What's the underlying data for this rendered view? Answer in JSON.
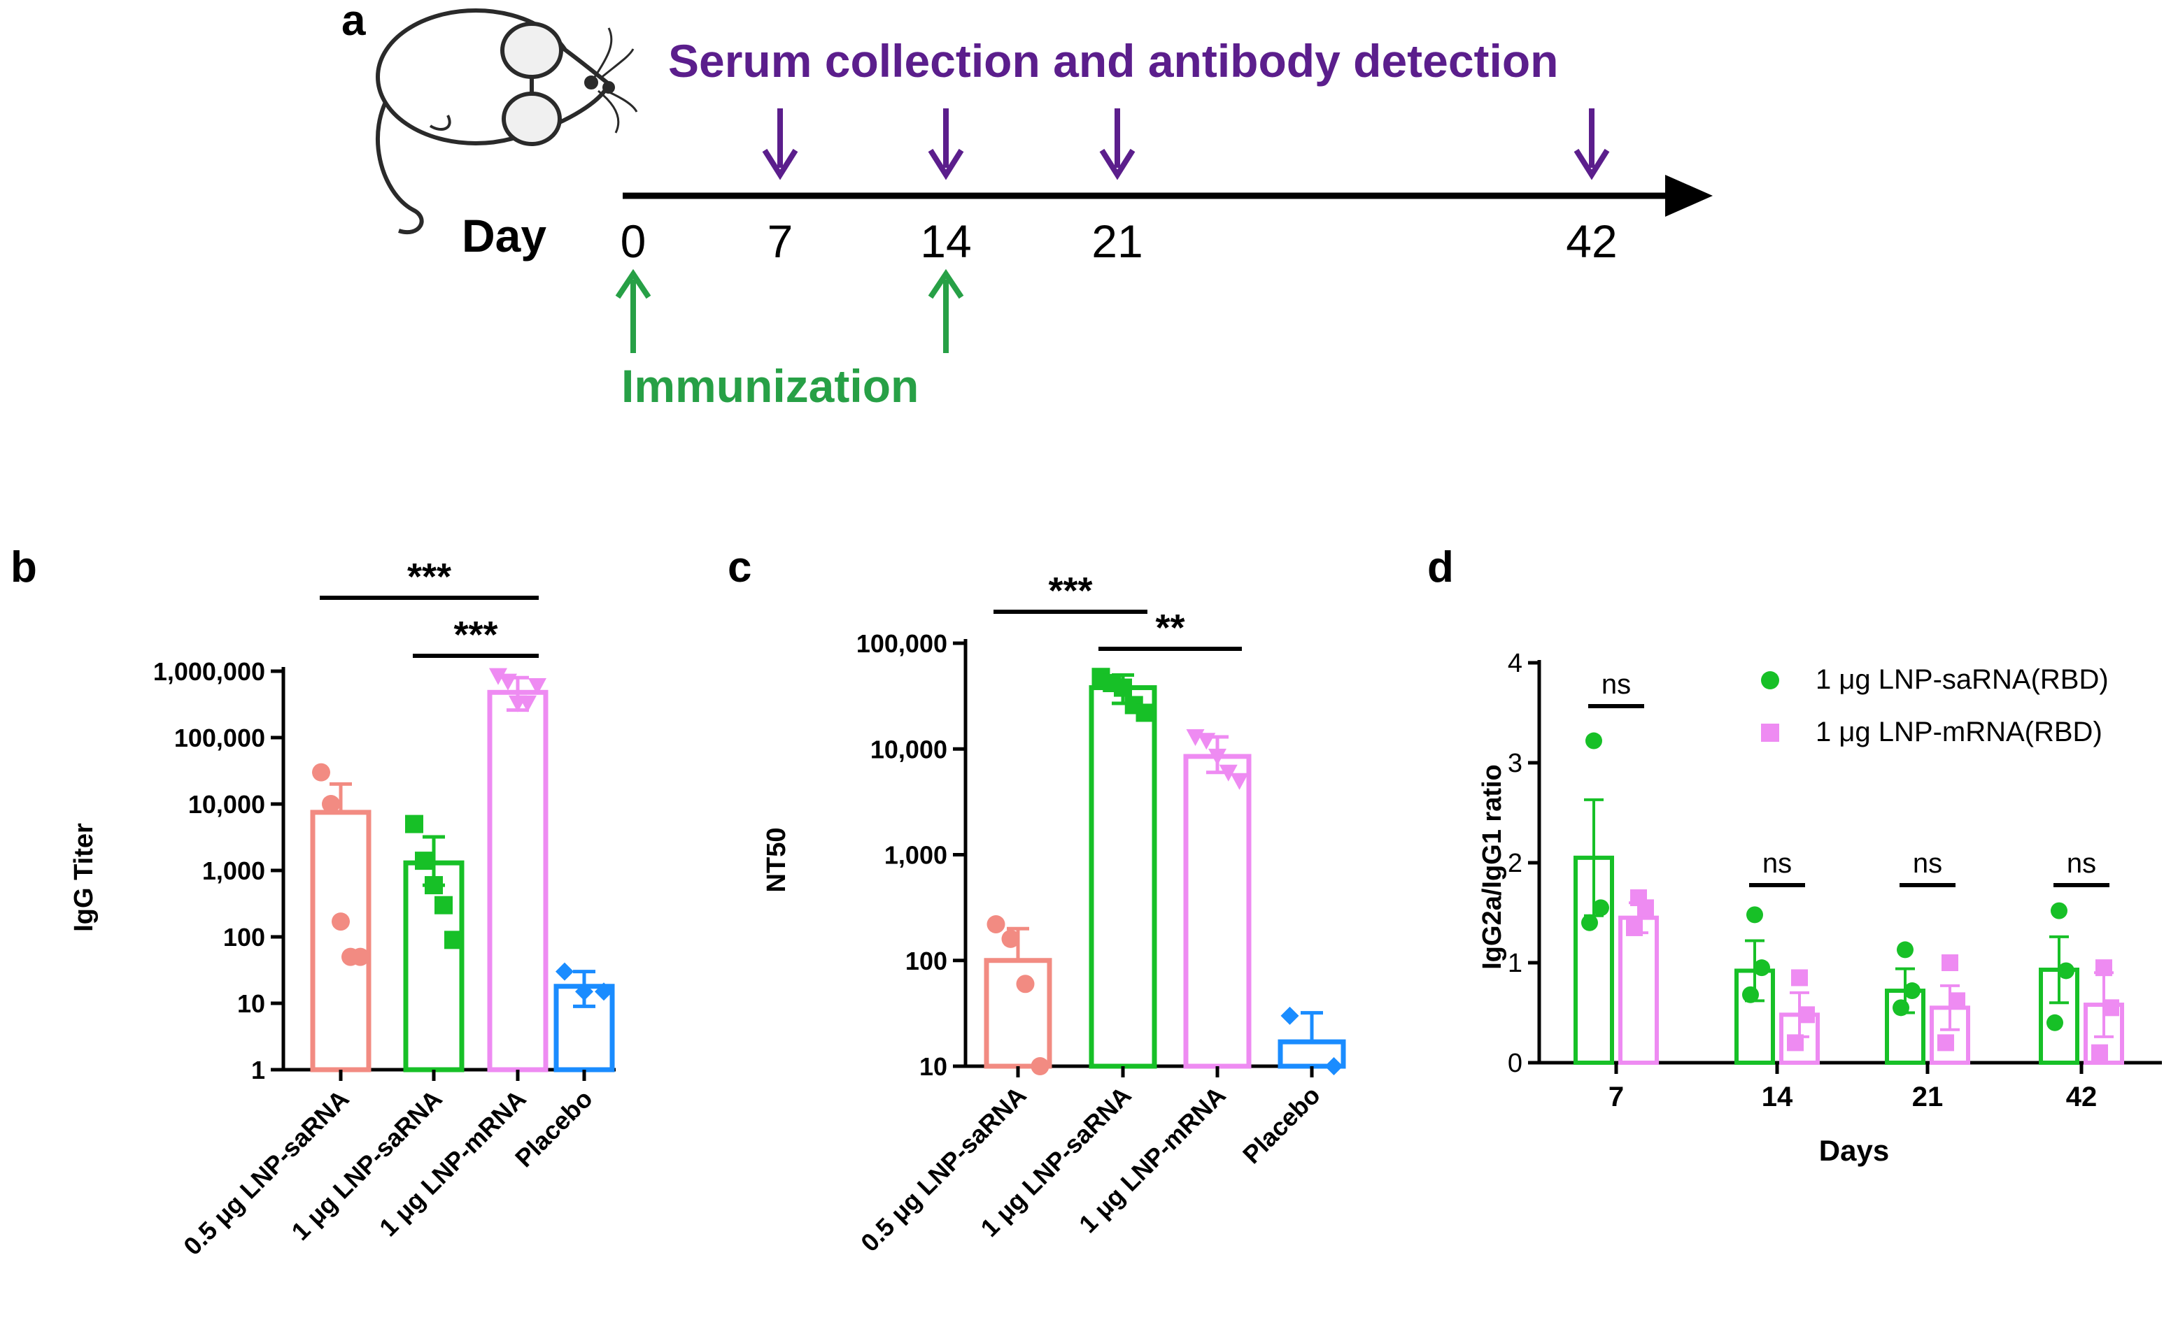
{
  "colors": {
    "pink": "#f28b82",
    "green": "#17c027",
    "violet": "#ee8bf2",
    "blue": "#1a8cff",
    "purple": "#5b1e8c",
    "immun_green": "#27a046",
    "black": "#000000"
  },
  "panel_a": {
    "label": "a",
    "top_title": "Serum collection and antibody detection",
    "day_label": "Day",
    "days": [
      "0",
      "7",
      "14",
      "21",
      "42"
    ],
    "collection_days": [
      7,
      14,
      21,
      42
    ],
    "immunization_days": [
      0,
      14
    ],
    "immunization_label": "Immunization"
  },
  "chart_data": [
    {
      "id": "b",
      "panel_label": "b",
      "type": "bar",
      "yscale": "log",
      "ylabel": "IgG Titer",
      "ylim": [
        1,
        1000000
      ],
      "yticks": [
        1,
        10,
        100,
        1000,
        10000,
        100000,
        1000000
      ],
      "ytick_labels": [
        "1",
        "10",
        "100",
        "1,000",
        "10,000",
        "100,000",
        "1,000,000"
      ],
      "categories": [
        "0.5 μg LNP-saRNA",
        "1 μg LNP-saRNA",
        "1 μg LNP-mRNA",
        "Placebo"
      ],
      "bar_colors": [
        "pink",
        "green",
        "violet",
        "blue"
      ],
      "markers": [
        "circle",
        "square",
        "triangle-down",
        "diamond"
      ],
      "means": [
        7500,
        1300,
        480000,
        18
      ],
      "errors_upper": [
        20000,
        3200,
        800000,
        30
      ],
      "errors_lower": [
        null,
        600,
        260000,
        9
      ],
      "points": [
        [
          30000,
          10000,
          170,
          50,
          50
        ],
        [
          5000,
          1400,
          600,
          300,
          90
        ],
        [
          850000,
          700000,
          330000,
          330000,
          600000
        ],
        [
          30,
          15,
          15
        ]
      ],
      "significance": [
        {
          "from": 0,
          "to": 2,
          "label": "***"
        },
        {
          "from": 1,
          "to": 2,
          "label": "***"
        }
      ]
    },
    {
      "id": "c",
      "panel_label": "c",
      "type": "bar",
      "yscale": "log",
      "ylabel": "NT50",
      "ylim": [
        10,
        100000
      ],
      "yticks": [
        10,
        100,
        1000,
        10000,
        100000
      ],
      "ytick_labels": [
        "10",
        "100",
        "1,000",
        "10,000",
        "100,000"
      ],
      "categories": [
        "0.5 μg LNP-saRNA",
        "1 μg LNP-saRNA",
        "1 μg LNP-mRNA",
        "Placebo"
      ],
      "bar_colors": [
        "pink",
        "green",
        "violet",
        "blue"
      ],
      "markers": [
        "circle",
        "square",
        "triangle-down",
        "diamond"
      ],
      "means": [
        100,
        38000,
        8500,
        17
      ],
      "errors_upper": [
        200,
        50000,
        13000,
        32
      ],
      "errors_lower": [
        null,
        27000,
        6000,
        null
      ],
      "points": [
        [
          220,
          160,
          60,
          10
        ],
        [
          48000,
          42000,
          38000,
          26000,
          22000
        ],
        [
          13000,
          12000,
          8500,
          6000,
          5000
        ],
        [
          30,
          10
        ]
      ],
      "significance": [
        {
          "from": 0,
          "to": 1,
          "label": "***"
        },
        {
          "from": 1,
          "to": 2,
          "label": "**"
        }
      ]
    },
    {
      "id": "d",
      "panel_label": "d",
      "type": "bar",
      "yscale": "linear",
      "ylabel": "IgG2a/IgG1 ratio",
      "xlabel": "Days",
      "ylim": [
        0,
        4
      ],
      "yticks": [
        0,
        1,
        2,
        3,
        4
      ],
      "ytick_labels": [
        "0",
        "1",
        "2",
        "3",
        "4"
      ],
      "categories": [
        "7",
        "14",
        "21",
        "42"
      ],
      "series": [
        {
          "name": "1 μg LNP-saRNA(RBD)",
          "color": "green",
          "marker": "circle",
          "values": [
            2.05,
            0.92,
            0.72,
            0.93
          ],
          "errors": [
            0.58,
            0.3,
            0.22,
            0.33
          ],
          "points": [
            [
              3.22,
              1.55,
              1.4
            ],
            [
              1.48,
              0.95,
              0.68
            ],
            [
              1.13,
              0.72,
              0.55
            ],
            [
              1.52,
              0.92,
              0.4
            ]
          ]
        },
        {
          "name": "1 μg LNP-mRNA(RBD)",
          "color": "violet",
          "marker": "square",
          "values": [
            1.45,
            0.48,
            0.55,
            0.58
          ],
          "errors": [
            0.15,
            0.22,
            0.22,
            0.32
          ],
          "points": [
            [
              1.65,
              1.55,
              1.35
            ],
            [
              0.85,
              0.48,
              0.2
            ],
            [
              1.0,
              0.62,
              0.2
            ],
            [
              0.95,
              0.55,
              0.1
            ]
          ]
        }
      ],
      "significance": [
        {
          "group": 0,
          "label": "ns"
        },
        {
          "group": 1,
          "label": "ns"
        },
        {
          "group": 2,
          "label": "ns"
        },
        {
          "group": 3,
          "label": "ns"
        }
      ]
    }
  ]
}
